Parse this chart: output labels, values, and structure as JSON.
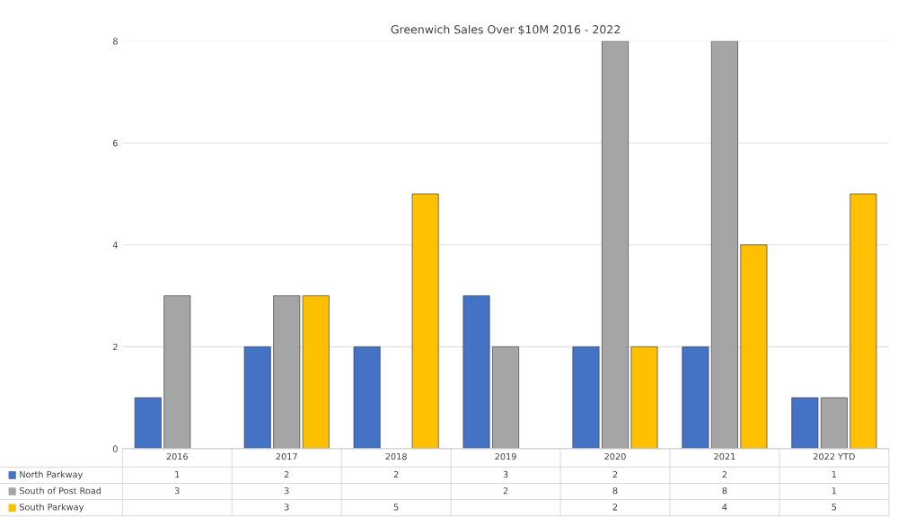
{
  "chart_data": {
    "type": "bar",
    "title": "Greenwich Sales Over $10M 2016 - 2022",
    "categories": [
      "2016",
      "2017",
      "2018",
      "2019",
      "2020",
      "2021",
      "2022 YTD"
    ],
    "series": [
      {
        "name": "North Parkway",
        "color": "#4472c4",
        "values": [
          1,
          2,
          2,
          3,
          2,
          2,
          1
        ]
      },
      {
        "name": "South of Post Road",
        "color": "#a5a5a5",
        "values": [
          3,
          3,
          null,
          2,
          8,
          8,
          1
        ]
      },
      {
        "name": "South Parkway",
        "color": "#ffc000",
        "values": [
          null,
          3,
          5,
          null,
          2,
          4,
          5
        ]
      }
    ],
    "ylim": [
      0,
      8
    ],
    "yticks": [
      0,
      2,
      4,
      6,
      8
    ],
    "grid": "y",
    "legend": "bottom",
    "data_labels": true
  }
}
